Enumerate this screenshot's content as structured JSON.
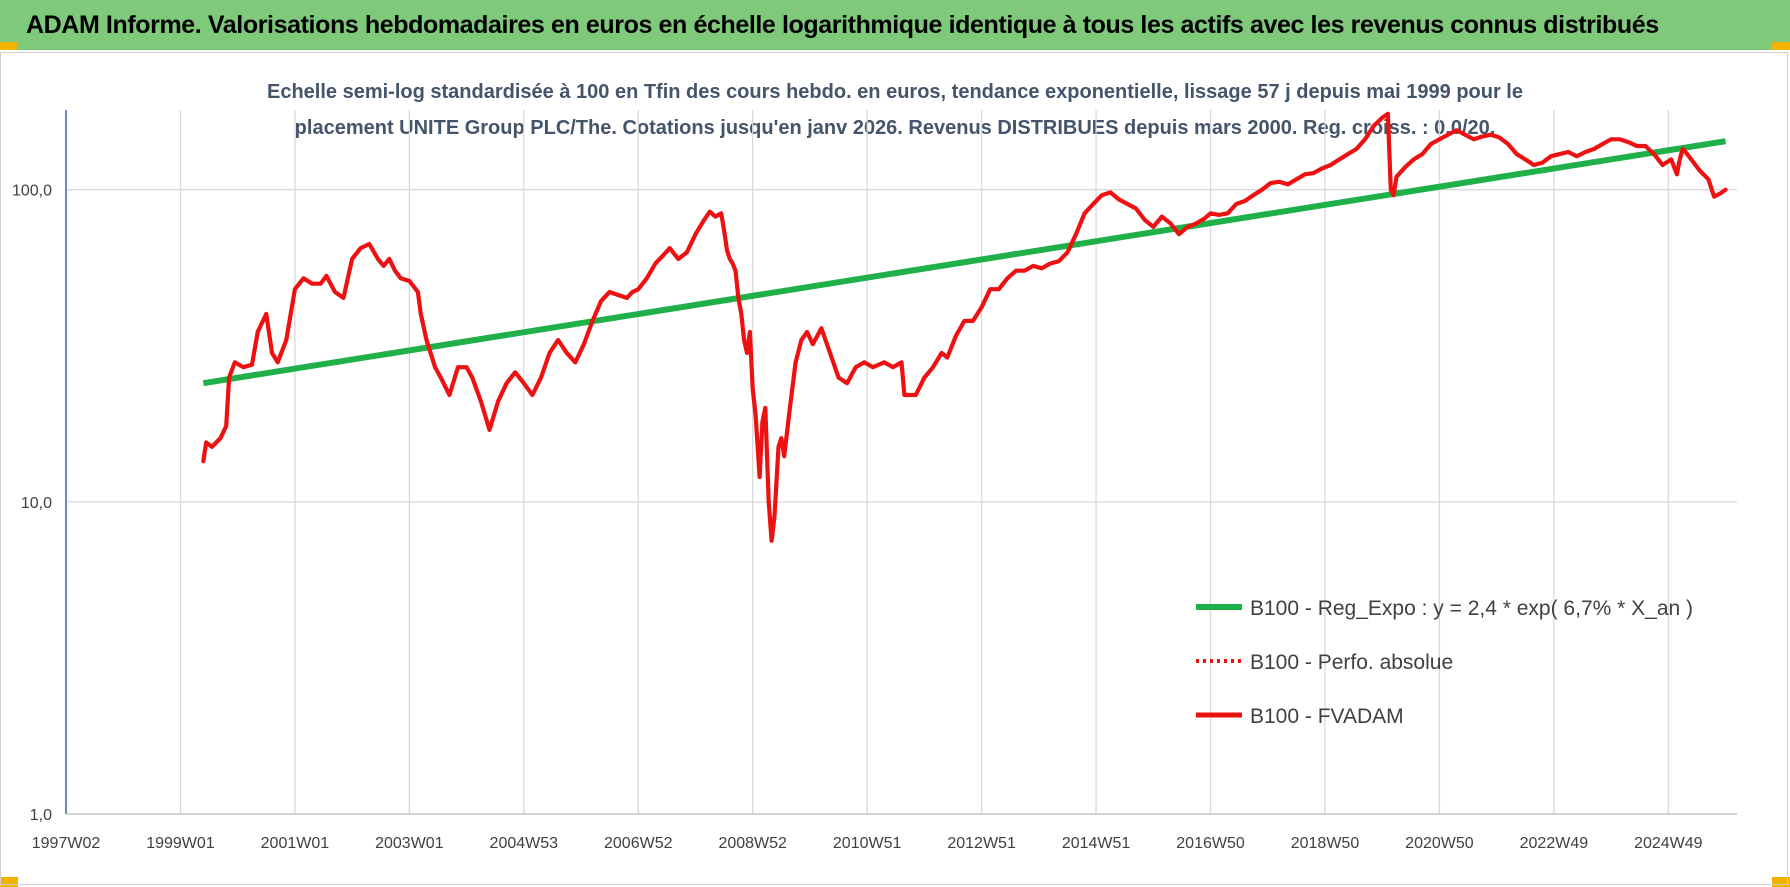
{
  "header": {
    "title": "ADAM Informe. Valorisations hebdomadaires en euros en échelle logarithmique identique à tous les actifs avec les revenus connus distribués"
  },
  "colors": {
    "title_bar": "#7fc97a",
    "corner_accent": "#f0b400",
    "regression": "#1fb04a",
    "fvadam": "#ee1111",
    "perf_absolue": "#ee1111",
    "grid": "#d9d9d9",
    "subtitle": "#44546a"
  },
  "chart_data": {
    "type": "line",
    "subtitle_lines": [
      "Echelle semi-log standardisée à 100 en Tfin des cours hebdo. en euros, tendance exponentielle, lissage 57 j depuis mai 1999 pour le",
      "placement UNITE Group PLC/The. Cotations jusqu'en janv 2026.  Revenus DISTRIBUES depuis mars 2000. Reg. croiss. : 0,0/20."
    ],
    "y_scale": "log",
    "ylim": [
      1,
      180
    ],
    "y_ticks": [
      "1,0",
      "10,0",
      "100,0"
    ],
    "xlim": [
      1997.0,
      2026.2
    ],
    "x_ticks": [
      {
        "label": "1997W02",
        "x": 1997.0
      },
      {
        "label": "1999W01",
        "x": 1999.0
      },
      {
        "label": "2001W01",
        "x": 2001.0
      },
      {
        "label": "2003W01",
        "x": 2003.0
      },
      {
        "label": "2004W53",
        "x": 2005.0
      },
      {
        "label": "2006W52",
        "x": 2007.0
      },
      {
        "label": "2008W52",
        "x": 2009.0
      },
      {
        "label": "2010W51",
        "x": 2011.0
      },
      {
        "label": "2012W51",
        "x": 2013.0
      },
      {
        "label": "2014W51",
        "x": 2015.0
      },
      {
        "label": "2016W50",
        "x": 2017.0
      },
      {
        "label": "2018W50",
        "x": 2019.0
      },
      {
        "label": "2020W50",
        "x": 2021.0
      },
      {
        "label": "2022W49",
        "x": 2023.0
      },
      {
        "label": "2024W49",
        "x": 2025.0
      }
    ],
    "grid": true,
    "legend_position": "bottom-right",
    "series": [
      {
        "name": "B100 - Reg_Expo : y = 2,4 * exp( 6,7% *  X_an )",
        "style": "solid-thick",
        "x": [
          1999.4,
          2026.0
        ],
        "y": [
          24,
          143
        ]
      },
      {
        "name": "B100 - Perfo. absolue",
        "style": "dotted",
        "x": [],
        "y": []
      },
      {
        "name": "B100 - FVADAM",
        "style": "solid",
        "x": [
          1999.4,
          1999.45,
          1999.55,
          1999.7,
          1999.8,
          1999.85,
          1999.95,
          2000.1,
          2000.25,
          2000.35,
          2000.5,
          2000.6,
          2000.7,
          2000.85,
          2001.0,
          2001.15,
          2001.3,
          2001.45,
          2001.55,
          2001.7,
          2001.85,
          2002.0,
          2002.15,
          2002.3,
          2002.45,
          2002.55,
          2002.65,
          2002.75,
          2002.85,
          2003.0,
          2003.15,
          2003.2,
          2003.3,
          2003.45,
          2003.55,
          2003.7,
          2003.85,
          2004.0,
          2004.1,
          2004.25,
          2004.4,
          2004.55,
          2004.7,
          2004.85,
          2005.0,
          2005.15,
          2005.3,
          2005.45,
          2005.6,
          2005.75,
          2005.9,
          2006.05,
          2006.2,
          2006.35,
          2006.5,
          2006.65,
          2006.8,
          2006.9,
          2007.0,
          2007.15,
          2007.3,
          2007.45,
          2007.55,
          2007.7,
          2007.85,
          2008.0,
          2008.15,
          2008.25,
          2008.35,
          2008.45,
          2008.5,
          2008.55,
          2008.6,
          2008.65,
          2008.7,
          2008.75,
          2008.8,
          2008.85,
          2008.9,
          2008.95,
          2009.0,
          2009.05,
          2009.12,
          2009.17,
          2009.22,
          2009.28,
          2009.33,
          2009.38,
          2009.45,
          2009.5,
          2009.55,
          2009.65,
          2009.75,
          2009.85,
          2009.95,
          2010.05,
          2010.2,
          2010.35,
          2010.5,
          2010.65,
          2010.8,
          2010.95,
          2011.1,
          2011.3,
          2011.45,
          2011.6,
          2011.65,
          2011.75,
          2011.85,
          2012.0,
          2012.15,
          2012.3,
          2012.4,
          2012.55,
          2012.7,
          2012.85,
          2013.0,
          2013.15,
          2013.3,
          2013.45,
          2013.6,
          2013.75,
          2013.9,
          2014.05,
          2014.2,
          2014.35,
          2014.5,
          2014.65,
          2014.8,
          2014.95,
          2015.1,
          2015.25,
          2015.4,
          2015.55,
          2015.7,
          2015.85,
          2016.0,
          2016.15,
          2016.3,
          2016.45,
          2016.6,
          2016.75,
          2016.9,
          2017.0,
          2017.15,
          2017.3,
          2017.45,
          2017.6,
          2017.75,
          2017.9,
          2018.05,
          2018.2,
          2018.35,
          2018.5,
          2018.65,
          2018.8,
          2018.95,
          2019.1,
          2019.25,
          2019.4,
          2019.55,
          2019.7,
          2019.85,
          2020.0,
          2020.1,
          2020.15,
          2020.2,
          2020.25,
          2020.4,
          2020.55,
          2020.7,
          2020.85,
          2021.0,
          2021.15,
          2021.3,
          2021.45,
          2021.6,
          2021.75,
          2021.9,
          2022.05,
          2022.2,
          2022.35,
          2022.5,
          2022.65,
          2022.8,
          2022.95,
          2023.1,
          2023.25,
          2023.4,
          2023.55,
          2023.7,
          2023.85,
          2024.0,
          2024.15,
          2024.3,
          2024.45,
          2024.6,
          2024.75,
          2024.9,
          2025.05,
          2025.15,
          2025.2,
          2025.25,
          2025.3,
          2025.4,
          2025.55,
          2025.7,
          2025.8,
          2025.9,
          2026.0
        ],
        "y": [
          13.5,
          15.5,
          15,
          16,
          17.5,
          25,
          28,
          27,
          27.5,
          35,
          40,
          30,
          28,
          33,
          48,
          52,
          50,
          50,
          53,
          47,
          45,
          60,
          65,
          67,
          60,
          57,
          60,
          55,
          52,
          51,
          47,
          40,
          33,
          27,
          25,
          22,
          27,
          27,
          25,
          21,
          17,
          21,
          24,
          26,
          24,
          22,
          25,
          30,
          33,
          30,
          28,
          32,
          38,
          44,
          47,
          46,
          45,
          47,
          48,
          52,
          58,
          62,
          65,
          60,
          63,
          72,
          80,
          85,
          82,
          84,
          74,
          64,
          60,
          58,
          55,
          45,
          40,
          33,
          30,
          35,
          23,
          19,
          12,
          18,
          20,
          10,
          7.5,
          9,
          15,
          16,
          14,
          20,
          28,
          33,
          35,
          32,
          36,
          30,
          25,
          24,
          27,
          28,
          27,
          28,
          27,
          28,
          22,
          22,
          22,
          25,
          27,
          30,
          29,
          34,
          38,
          38,
          42,
          48,
          48,
          52,
          55,
          55,
          57,
          56,
          58,
          59,
          63,
          72,
          84,
          90,
          96,
          98,
          93,
          90,
          87,
          80,
          76,
          82,
          78,
          72,
          76,
          78,
          81,
          84,
          83,
          84,
          90,
          92,
          96,
          100,
          105,
          106,
          104,
          108,
          112,
          113,
          117,
          120,
          125,
          130,
          135,
          145,
          160,
          170,
          175,
          100,
          96,
          110,
          118,
          125,
          130,
          140,
          145,
          150,
          155,
          150,
          145,
          148,
          150,
          147,
          140,
          130,
          125,
          120,
          122,
          128,
          130,
          132,
          128,
          132,
          135,
          140,
          145,
          145,
          142,
          138,
          138,
          130,
          120,
          125,
          112,
          125,
          135,
          132,
          125,
          115,
          108,
          95,
          97,
          100
        ]
      }
    ]
  }
}
